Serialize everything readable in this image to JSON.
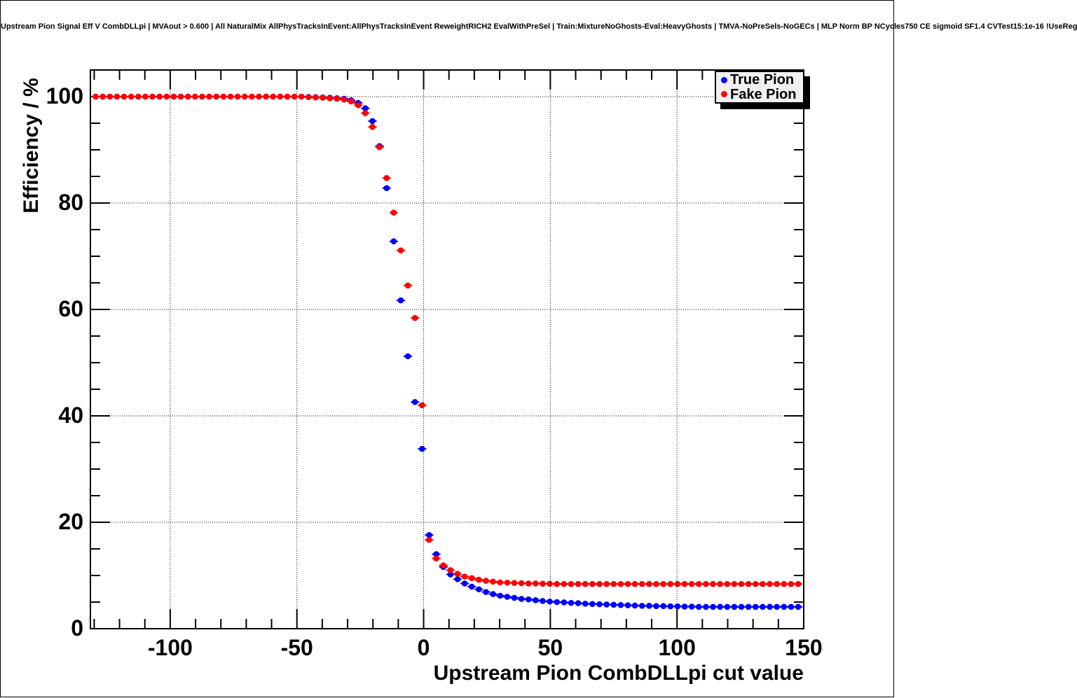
{
  "title": "Upstream Pion Signal Eff V CombDLLpi | MVAout > 0.600 | All NaturalMix AllPhysTracksInEvent:AllPhysTracksInEvent ReweightRICH2 EvalWithPreSel | Train:MixtureNoGhosts-Eval:HeavyGhosts | TMVA-NoPreSels-NoGECs | MLP Norm BP NCycles750 CE sigmoid SF1.4 CVTest15:1e-16 !UseReg",
  "legend": {
    "entries": [
      {
        "label": "True Pion",
        "color": "#0000ff"
      },
      {
        "label": "Fake Pion",
        "color": "#ff0000"
      }
    ]
  },
  "chart_data": {
    "type": "scatter",
    "title": "Upstream Pion Signal Eff V CombDLLpi",
    "xlabel": "Upstream Pion CombDLLpi cut value",
    "ylabel": "Efficiency / %",
    "xlim": [
      -131.5,
      150
    ],
    "ylim": [
      0,
      105
    ],
    "grid": "dotted-on-major",
    "legend_position": "top-right",
    "x_major_ticks": [
      -100,
      -50,
      0,
      50,
      100,
      150
    ],
    "x_tick_labels": [
      "-100",
      "-50",
      "0",
      "50",
      "100",
      "150"
    ],
    "x_minor_step": 10,
    "y_major_ticks": [
      0,
      20,
      40,
      60,
      80,
      100
    ],
    "y_tick_labels": [
      "0",
      "20",
      "40",
      "60",
      "80",
      "100"
    ],
    "y_minor_step": 5,
    "marker": "filled-circle-with-horizontal-error-bar",
    "x_error_halfwidth": 1.4,
    "x": [
      -129.4,
      -126.6,
      -123.8,
      -121.0,
      -118.2,
      -115.4,
      -112.6,
      -109.8,
      -107.0,
      -104.2,
      -101.4,
      -98.6,
      -95.8,
      -93.0,
      -90.2,
      -87.4,
      -84.6,
      -81.8,
      -79.0,
      -76.2,
      -73.4,
      -70.6,
      -67.8,
      -65.0,
      -62.2,
      -59.4,
      -56.6,
      -53.8,
      -51.0,
      -48.2,
      -45.4,
      -42.6,
      -39.8,
      -37.0,
      -34.2,
      -31.4,
      -28.6,
      -25.8,
      -23.0,
      -20.2,
      -17.4,
      -14.6,
      -11.8,
      -9.0,
      -6.2,
      -3.4,
      -0.6,
      2.2,
      5.0,
      7.8,
      10.6,
      13.4,
      16.2,
      19.0,
      21.8,
      24.6,
      27.4,
      30.2,
      33.0,
      35.8,
      38.6,
      41.4,
      44.2,
      47.0,
      49.8,
      52.6,
      55.4,
      58.2,
      61.0,
      63.8,
      66.6,
      69.4,
      72.2,
      75.0,
      77.8,
      80.6,
      83.4,
      86.2,
      89.0,
      91.8,
      94.6,
      97.4,
      100.2,
      103.0,
      105.8,
      108.6,
      111.4,
      114.2,
      117.0,
      119.8,
      122.6,
      125.4,
      128.2,
      131.0,
      133.8,
      136.6,
      139.4,
      142.2,
      145.0,
      147.8
    ],
    "series": [
      {
        "name": "True Pion",
        "color": "#0000ff",
        "values": [
          100.0,
          100.0,
          100.0,
          100.0,
          100.0,
          100.0,
          100.0,
          100.0,
          100.0,
          100.0,
          100.0,
          100.0,
          100.0,
          100.0,
          100.0,
          100.0,
          100.0,
          100.0,
          100.0,
          100.0,
          100.0,
          100.0,
          100.0,
          100.0,
          100.0,
          100.0,
          100.0,
          100.0,
          100.0,
          100.0,
          99.95,
          99.9,
          99.85,
          99.8,
          99.7,
          99.6,
          99.3,
          98.8,
          97.8,
          95.4,
          90.7,
          82.8,
          72.8,
          61.7,
          51.2,
          42.6,
          33.8,
          17.6,
          14.0,
          11.6,
          10.2,
          9.3,
          8.5,
          7.9,
          7.4,
          6.9,
          6.5,
          6.2,
          6.0,
          5.8,
          5.6,
          5.5,
          5.35,
          5.2,
          5.1,
          5.0,
          4.95,
          4.85,
          4.8,
          4.7,
          4.65,
          4.6,
          4.55,
          4.5,
          4.45,
          4.4,
          4.35,
          4.3,
          4.3,
          4.25,
          4.25,
          4.2,
          4.2,
          4.15,
          4.15,
          4.1,
          4.1,
          4.1,
          4.1,
          4.1,
          4.1,
          4.1,
          4.1,
          4.1,
          4.1,
          4.1,
          4.1,
          4.1,
          4.1,
          4.1
        ]
      },
      {
        "name": "Fake Pion",
        "color": "#ff0000",
        "values": [
          100.0,
          100.0,
          100.0,
          100.0,
          100.0,
          100.0,
          100.0,
          100.0,
          100.0,
          100.0,
          100.0,
          100.0,
          100.0,
          100.0,
          100.0,
          100.0,
          100.0,
          100.0,
          100.0,
          100.0,
          100.0,
          100.0,
          100.0,
          100.0,
          100.0,
          100.0,
          100.0,
          100.0,
          100.0,
          100.0,
          99.9,
          99.85,
          99.8,
          99.7,
          99.6,
          99.45,
          99.1,
          98.4,
          96.9,
          94.3,
          90.5,
          84.7,
          78.2,
          71.1,
          64.5,
          58.4,
          42.0,
          16.7,
          13.2,
          11.9,
          11.0,
          10.3,
          9.8,
          9.5,
          9.2,
          9.0,
          8.85,
          8.7,
          8.65,
          8.6,
          8.55,
          8.5,
          8.5,
          8.45,
          8.45,
          8.4,
          8.4,
          8.4,
          8.4,
          8.4,
          8.4,
          8.4,
          8.4,
          8.4,
          8.4,
          8.4,
          8.4,
          8.4,
          8.4,
          8.4,
          8.4,
          8.4,
          8.4,
          8.4,
          8.4,
          8.4,
          8.4,
          8.4,
          8.4,
          8.4,
          8.4,
          8.4,
          8.4,
          8.4,
          8.4,
          8.4,
          8.4,
          8.4,
          8.4,
          8.4
        ]
      }
    ]
  }
}
